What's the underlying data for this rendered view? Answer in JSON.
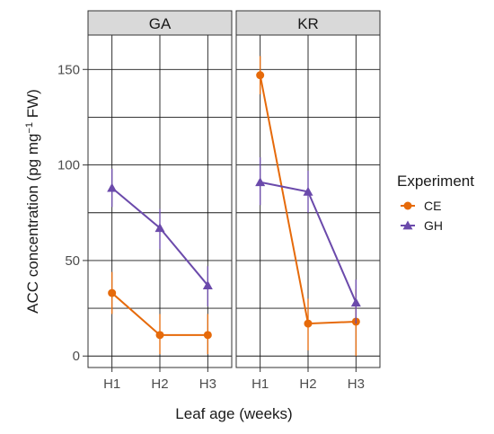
{
  "chart_data": {
    "type": "line",
    "ylabel": "ACC concentration (pg mg",
    "ylabel_sup": "−1",
    "ylabel_tail": " FW)",
    "xlabel": "Leaf age (weeks)",
    "categories": [
      "H1",
      "H2",
      "H3"
    ],
    "ylim": [
      -6,
      168
    ],
    "yticks": [
      0,
      50,
      100,
      150
    ],
    "legend": {
      "title": "Experiment",
      "placement": "right"
    },
    "facets": [
      {
        "label": "GA",
        "series": [
          {
            "name": "CE",
            "color": "#e66a0a",
            "marker": "circle",
            "values": [
              33,
              11,
              11
            ],
            "err_low": [
              22,
              1,
              1
            ],
            "err_high": [
              44,
              22,
              22
            ]
          },
          {
            "name": "GH",
            "color": "#6b4aab",
            "marker": "triangle",
            "values": [
              88,
              67,
              37
            ],
            "err_low": [
              78,
              56,
              26
            ],
            "err_high": [
              98,
              77,
              47
            ]
          }
        ]
      },
      {
        "label": "KR",
        "series": [
          {
            "name": "CE",
            "color": "#e66a0a",
            "marker": "circle",
            "values": [
              147,
              17,
              18
            ],
            "err_low": [
              137,
              3,
              0
            ],
            "err_high": [
              157,
              30,
              35
            ]
          },
          {
            "name": "GH",
            "color": "#6b4aab",
            "marker": "triangle",
            "values": [
              91,
              86,
              28
            ],
            "err_low": [
              79,
              75,
              17
            ],
            "err_high": [
              104,
              97,
              40
            ]
          }
        ]
      }
    ],
    "grid": true
  }
}
